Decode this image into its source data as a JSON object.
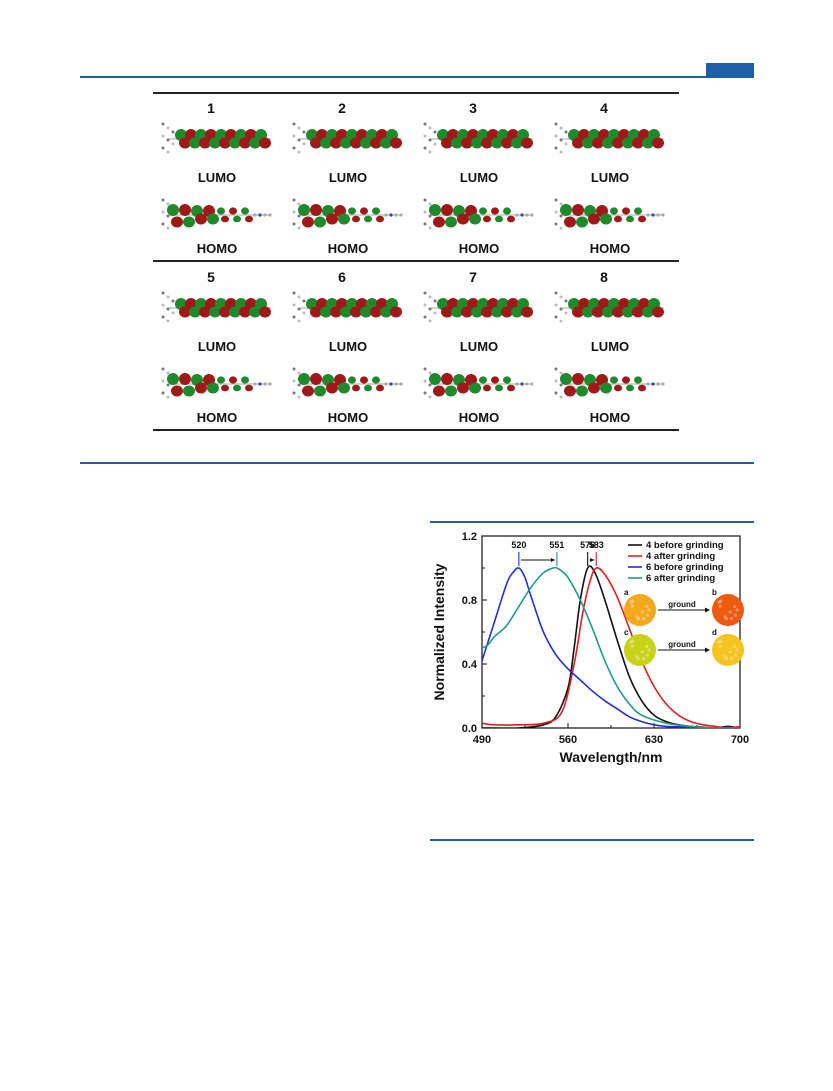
{
  "orbital_figure": {
    "panels": [
      {
        "number": "1",
        "lumo_label": "LUMO",
        "homo_label": "HOMO"
      },
      {
        "number": "2",
        "lumo_label": "LUMO",
        "homo_label": "HOMO"
      },
      {
        "number": "3",
        "lumo_label": "LUMO",
        "homo_label": "HOMO"
      },
      {
        "number": "4",
        "lumo_label": "LUMO",
        "homo_label": "HOMO"
      },
      {
        "number": "5",
        "lumo_label": "LUMO",
        "homo_label": "HOMO"
      },
      {
        "number": "6",
        "lumo_label": "LUMO",
        "homo_label": "HOMO"
      },
      {
        "number": "7",
        "lumo_label": "LUMO",
        "homo_label": "HOMO"
      },
      {
        "number": "8",
        "lumo_label": "LUMO",
        "homo_label": "HOMO"
      }
    ]
  },
  "colors": {
    "accent": "#1f5fa8",
    "orbital_positive": "#a01818",
    "orbital_negative": "#1f8a2c"
  },
  "chart_data": {
    "type": "line",
    "xlabel": "Wavelength/nm",
    "ylabel": "Normalized Intensity",
    "xlim": [
      490,
      700
    ],
    "ylim": [
      0,
      1.2
    ],
    "xticks": [
      "490",
      "560",
      "630",
      "700"
    ],
    "yticks": [
      "0.0",
      "0.4",
      "0.8",
      "1.2"
    ],
    "legend_position": "top-right",
    "series": [
      {
        "name": "4 before grinding",
        "color": "#111111",
        "x": [
          490,
          520,
          540,
          550,
          560,
          565,
          570,
          576,
          582,
          590,
          600,
          610,
          620,
          630,
          640,
          650,
          660,
          670,
          680,
          690,
          700
        ],
        "y": [
          0.0,
          0.0,
          0.02,
          0.07,
          0.25,
          0.5,
          0.8,
          1.0,
          0.97,
          0.8,
          0.55,
          0.32,
          0.17,
          0.08,
          0.04,
          0.02,
          0.01,
          0.005,
          0.0,
          0.01,
          0.0
        ]
      },
      {
        "name": "4 after grinding",
        "color": "#e02020",
        "x": [
          490,
          500,
          520,
          540,
          555,
          565,
          572,
          578,
          583,
          590,
          600,
          610,
          620,
          630,
          640,
          650,
          660,
          670,
          680,
          690,
          700
        ],
        "y": [
          0.03,
          0.02,
          0.02,
          0.03,
          0.1,
          0.4,
          0.72,
          0.92,
          1.0,
          0.96,
          0.82,
          0.62,
          0.42,
          0.26,
          0.15,
          0.08,
          0.04,
          0.02,
          0.01,
          0.0,
          0.01
        ]
      },
      {
        "name": "6 before grinding",
        "color": "#2030d8",
        "x": [
          490,
          500,
          510,
          515,
          520,
          525,
          530,
          540,
          550,
          560,
          570,
          580,
          590,
          600,
          610,
          620,
          630,
          640,
          660,
          680,
          700
        ],
        "y": [
          0.42,
          0.66,
          0.9,
          0.97,
          1.0,
          0.94,
          0.82,
          0.6,
          0.46,
          0.37,
          0.3,
          0.23,
          0.17,
          0.12,
          0.07,
          0.04,
          0.02,
          0.01,
          0.005,
          0.0,
          0.0
        ]
      },
      {
        "name": "6 after grinding",
        "color": "#1f9a8a",
        "x": [
          490,
          495,
          500,
          510,
          520,
          530,
          540,
          548,
          551,
          555,
          560,
          570,
          580,
          590,
          600,
          610,
          620,
          640,
          660,
          680,
          700
        ],
        "y": [
          0.5,
          0.52,
          0.57,
          0.64,
          0.76,
          0.88,
          0.97,
          1.0,
          1.0,
          0.98,
          0.94,
          0.8,
          0.62,
          0.42,
          0.26,
          0.15,
          0.08,
          0.03,
          0.01,
          0.0,
          0.0
        ]
      }
    ],
    "annotations": [
      "520",
      "551",
      "576",
      "583"
    ],
    "inset": {
      "labels": [
        "a",
        "b",
        "c",
        "d"
      ],
      "arrow_label": "ground",
      "swatch_colors": [
        "#f4a81e",
        "#ee5a10",
        "#c9d21a",
        "#f5c41e"
      ]
    }
  }
}
